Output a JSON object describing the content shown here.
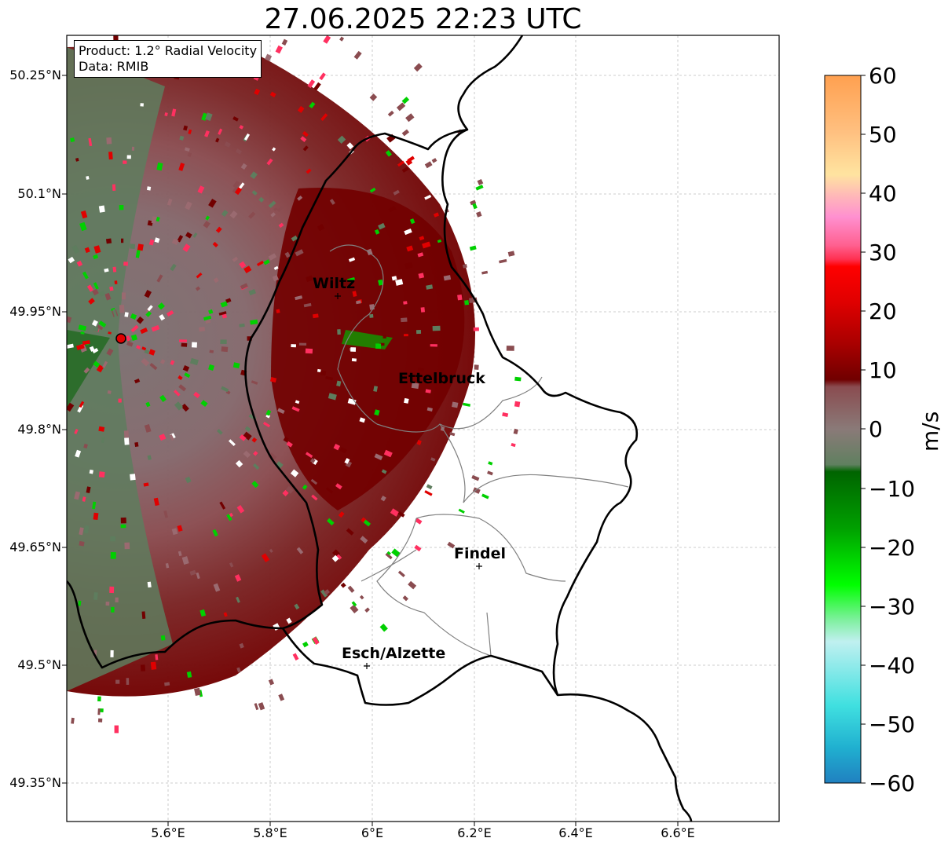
{
  "title": "27.06.2025 22:23 UTC",
  "info": {
    "product": "Product: 1.2° Radial Velocity",
    "data": "Data: RMIB"
  },
  "map": {
    "lon_range": [
      5.4,
      6.8
    ],
    "lat_range": [
      49.3,
      50.3
    ],
    "x_ticks": [
      {
        "value": 5.6,
        "label": "5.6°E"
      },
      {
        "value": 5.8,
        "label": "5.8°E"
      },
      {
        "value": 6.0,
        "label": "6°E"
      },
      {
        "value": 6.2,
        "label": "6.2°E"
      },
      {
        "value": 6.4,
        "label": "6.4°E"
      },
      {
        "value": 6.6,
        "label": "6.6°E"
      }
    ],
    "y_ticks": [
      {
        "value": 50.25,
        "label": "50.25°N"
      },
      {
        "value": 50.1,
        "label": "50.1°N"
      },
      {
        "value": 49.95,
        "label": "49.95°N"
      },
      {
        "value": 49.8,
        "label": "49.8°N"
      },
      {
        "value": 49.65,
        "label": "49.65°N"
      },
      {
        "value": 49.5,
        "label": "49.5°N"
      },
      {
        "value": 49.35,
        "label": "49.35°N"
      }
    ],
    "radar_site": {
      "lon": 5.505,
      "lat": 49.914
    },
    "cities": [
      {
        "name": "Wiltz",
        "lon": 5.93,
        "lat": 49.97
      },
      {
        "name": "Ettelbruck",
        "lon": 6.1,
        "lat": 49.85
      },
      {
        "name": "Findel",
        "lon": 6.21,
        "lat": 49.63
      },
      {
        "name": "Esch/Alzette",
        "lon": 5.99,
        "lat": 49.5
      }
    ]
  },
  "colorbar": {
    "unit": "m/s",
    "range": [
      -60,
      60
    ],
    "ticks": [
      "60",
      "50",
      "40",
      "30",
      "20",
      "10",
      "0",
      "−10",
      "−20",
      "−30",
      "−40",
      "−50",
      "−60"
    ]
  },
  "colors": {
    "neg_far": "#2a9ad0",
    "green_dark": "#006400",
    "green_bright": "#00e000",
    "zero_gray": "#8a7a78",
    "mauve": "#8a4c50",
    "maroon": "#720000",
    "red": "#ff0000",
    "pink": "#ff80c8",
    "orange": "#ffa050"
  }
}
